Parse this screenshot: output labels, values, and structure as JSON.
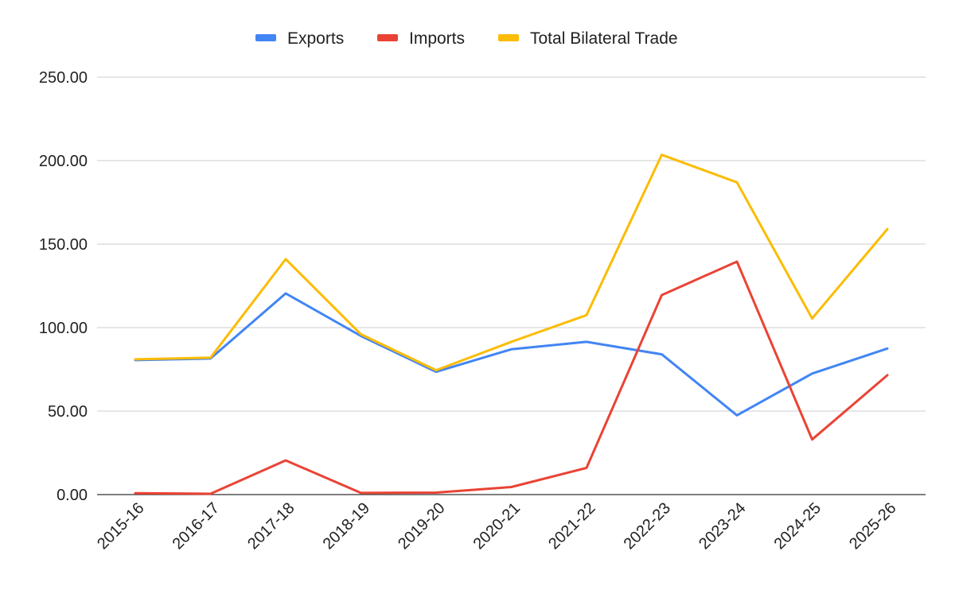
{
  "chart_data": {
    "type": "line",
    "categories": [
      "2015-16",
      "2016-17",
      "2017-18",
      "2018-19",
      "2019-20",
      "2020-21",
      "2021-22",
      "2022-23",
      "2023-24",
      "2024-25",
      "2025-26"
    ],
    "series": [
      {
        "name": "Exports",
        "color": "#4285f4",
        "values": [
          80.5,
          81.5,
          120.5,
          95.0,
          73.5,
          87.0,
          91.5,
          84.0,
          47.5,
          72.5,
          87.5
        ]
      },
      {
        "name": "Imports",
        "color": "#ea4335",
        "values": [
          0.8,
          0.5,
          20.5,
          1.0,
          1.2,
          4.5,
          16.0,
          119.5,
          139.5,
          33.0,
          71.5
        ]
      },
      {
        "name": "Total Bilateral Trade",
        "color": "#fbbc04",
        "values": [
          81.0,
          82.0,
          141.0,
          96.0,
          74.5,
          91.5,
          107.5,
          203.5,
          187.0,
          105.5,
          159.0
        ]
      }
    ],
    "y_ticks": [
      "0.00",
      "50.00",
      "100.00",
      "150.00",
      "200.00",
      "250.00"
    ],
    "ylim": [
      0,
      250
    ],
    "grid": true,
    "legend_position": "top-center"
  }
}
